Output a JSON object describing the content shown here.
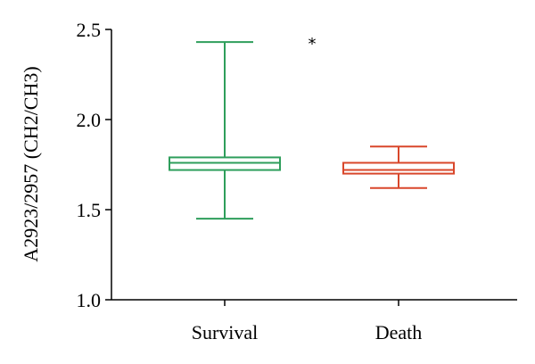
{
  "chart_data": {
    "type": "box",
    "title": "",
    "xlabel": "",
    "ylabel": "A2923/2957 (CH2/CH3)",
    "ylim": [
      1.0,
      2.5
    ],
    "yticks": [
      "1.0",
      "1.5",
      "2.0",
      "2.5"
    ],
    "grid": false,
    "categories": [
      "Survival",
      "Death"
    ],
    "boxes": [
      {
        "category": "Survival",
        "color": "#2e9e5b",
        "min": 1.45,
        "q1": 1.72,
        "median": 1.76,
        "q3": 1.79,
        "max": 2.43
      },
      {
        "category": "Death",
        "color": "#d9472b",
        "min": 1.62,
        "q1": 1.7,
        "median": 1.72,
        "q3": 1.76,
        "max": 1.85
      }
    ],
    "annotations": [
      {
        "text": "*",
        "x_between": [
          "Survival",
          "Death"
        ],
        "y": 2.45
      }
    ]
  }
}
